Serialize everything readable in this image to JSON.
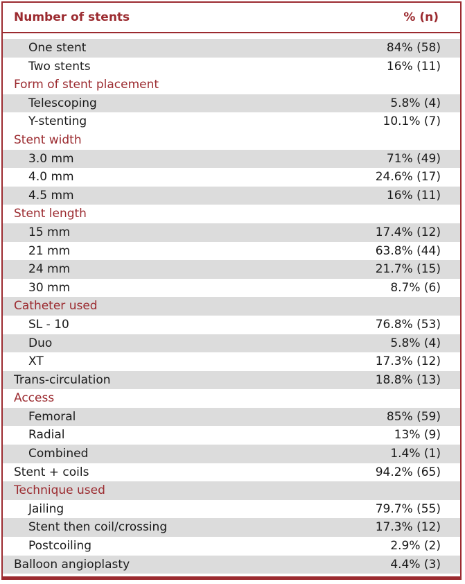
{
  "header": {
    "left": "Number of stents",
    "right": "% (n)"
  },
  "rows": [
    {
      "kind": "sub",
      "label": "One stent",
      "value": "84% (58)",
      "shade": true
    },
    {
      "kind": "sub",
      "label": "Two stents",
      "value": "16% (11)",
      "shade": false
    },
    {
      "kind": "section",
      "label": "Form of stent placement",
      "value": "",
      "shade": false
    },
    {
      "kind": "sub",
      "label": "Telescoping",
      "value": "5.8% (4)",
      "shade": true
    },
    {
      "kind": "sub",
      "label": "Y-stenting",
      "value": "10.1% (7)",
      "shade": false
    },
    {
      "kind": "section",
      "label": "Stent width",
      "value": "",
      "shade": false
    },
    {
      "kind": "sub",
      "label": "3.0 mm",
      "value": "71% (49)",
      "shade": true
    },
    {
      "kind": "sub",
      "label": "4.0 mm",
      "value": "24.6% (17)",
      "shade": false
    },
    {
      "kind": "sub",
      "label": "4.5 mm",
      "value": "16% (11)",
      "shade": true
    },
    {
      "kind": "section",
      "label": "Stent length",
      "value": "",
      "shade": false
    },
    {
      "kind": "sub",
      "label": "15 mm",
      "value": "17.4% (12)",
      "shade": true
    },
    {
      "kind": "sub",
      "label": "21 mm",
      "value": "63.8% (44)",
      "shade": false
    },
    {
      "kind": "sub",
      "label": "24 mm",
      "value": "21.7% (15)",
      "shade": true
    },
    {
      "kind": "sub",
      "label": "30 mm",
      "value": "8.7% (6)",
      "shade": false
    },
    {
      "kind": "section",
      "label": "Catheter used",
      "value": "",
      "shade": true
    },
    {
      "kind": "sub",
      "label": "SL - 10",
      "value": "76.8% (53)",
      "shade": false
    },
    {
      "kind": "sub",
      "label": "Duo",
      "value": "5.8% (4)",
      "shade": true
    },
    {
      "kind": "sub",
      "label": "XT",
      "value": "17.3% (12)",
      "shade": false
    },
    {
      "kind": "top",
      "label": "Trans-circulation",
      "value": "18.8% (13)",
      "shade": true
    },
    {
      "kind": "section",
      "label": "Access",
      "value": "",
      "shade": false
    },
    {
      "kind": "sub",
      "label": "Femoral",
      "value": "85% (59)",
      "shade": true
    },
    {
      "kind": "sub",
      "label": "Radial",
      "value": "13% (9)",
      "shade": false
    },
    {
      "kind": "sub",
      "label": "Combined",
      "value": "1.4% (1)",
      "shade": true
    },
    {
      "kind": "top",
      "label": "Stent + coils",
      "value": "94.2% (65)",
      "shade": false
    },
    {
      "kind": "section",
      "label": "Technique used",
      "value": "",
      "shade": true
    },
    {
      "kind": "sub",
      "label": "Jailing",
      "value": "79.7% (55)",
      "shade": false
    },
    {
      "kind": "sub",
      "label": "Stent then coil/crossing",
      "value": "17.3% (12)",
      "shade": true
    },
    {
      "kind": "sub",
      "label": "Postcoiling",
      "value": "2.9% (2)",
      "shade": false
    },
    {
      "kind": "top",
      "label": "Balloon angioplasty",
      "value": "4.4% (3)",
      "shade": true
    }
  ]
}
